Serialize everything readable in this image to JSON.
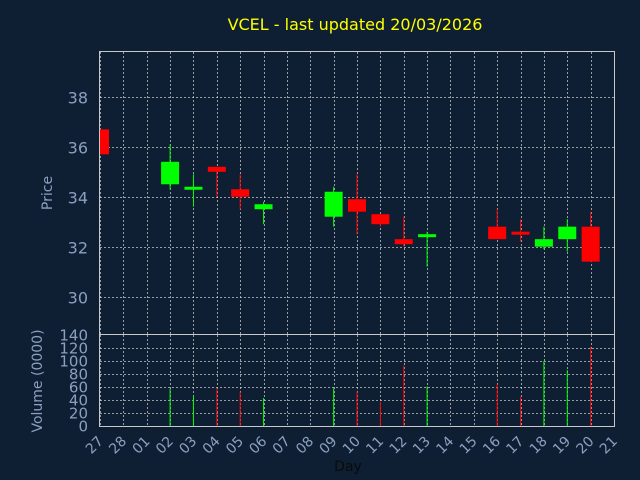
{
  "chart_data": [
    {
      "type": "candlestick",
      "title": "VCEL - last updated 20/03/2026",
      "ylabel": "Price",
      "xlabel": "Day",
      "ylim": [
        28.5,
        39.8
      ],
      "yticks": [
        30,
        32,
        34,
        36,
        38
      ],
      "grid": true,
      "up_color": "#00ff00",
      "down_color": "#ff0000",
      "categories": [
        "27",
        "28",
        "01",
        "02",
        "03",
        "04",
        "05",
        "06",
        "07",
        "08",
        "09",
        "10",
        "11",
        "12",
        "13",
        "14",
        "15",
        "16",
        "17",
        "18",
        "19",
        "20",
        "21"
      ],
      "candles": [
        {
          "x": "27",
          "open": 36.7,
          "high": 36.7,
          "low": 35.7,
          "close": 35.7
        },
        {
          "x": "02",
          "open": 34.5,
          "high": 36.1,
          "low": 34.3,
          "close": 35.4
        },
        {
          "x": "03",
          "open": 34.3,
          "high": 34.9,
          "low": 33.6,
          "close": 34.4
        },
        {
          "x": "04",
          "open": 35.2,
          "high": 35.2,
          "low": 34.0,
          "close": 35.0
        },
        {
          "x": "05",
          "open": 34.3,
          "high": 34.9,
          "low": 33.5,
          "close": 34.0
        },
        {
          "x": "06",
          "open": 33.5,
          "high": 33.8,
          "low": 32.9,
          "close": 33.7
        },
        {
          "x": "09",
          "open": 33.2,
          "high": 34.4,
          "low": 32.8,
          "close": 34.2
        },
        {
          "x": "10",
          "open": 33.9,
          "high": 34.9,
          "low": 32.5,
          "close": 33.4
        },
        {
          "x": "11",
          "open": 33.3,
          "high": 33.3,
          "low": 32.8,
          "close": 32.9
        },
        {
          "x": "12",
          "open": 32.3,
          "high": 33.2,
          "low": 32.0,
          "close": 32.1
        },
        {
          "x": "13",
          "open": 32.5,
          "high": 32.6,
          "low": 31.2,
          "close": 32.5
        },
        {
          "x": "16",
          "open": 32.8,
          "high": 33.5,
          "low": 32.3,
          "close": 32.3
        },
        {
          "x": "17",
          "open": 32.6,
          "high": 33.1,
          "low": 32.2,
          "close": 32.5
        },
        {
          "x": "18",
          "open": 32.0,
          "high": 32.8,
          "low": 31.9,
          "close": 32.3
        },
        {
          "x": "19",
          "open": 32.3,
          "high": 33.1,
          "low": 31.8,
          "close": 32.8
        },
        {
          "x": "20",
          "open": 32.8,
          "high": 33.4,
          "low": 31.4,
          "close": 31.4
        }
      ]
    },
    {
      "type": "bar",
      "ylabel": "Volume (0000)",
      "xlabel": "Day",
      "ylim": [
        0,
        140
      ],
      "yticks": [
        0,
        20,
        40,
        60,
        80,
        100,
        120,
        140
      ],
      "grid": true,
      "bars": [
        {
          "x": "02",
          "value": 57,
          "direction": "up"
        },
        {
          "x": "03",
          "value": 46,
          "direction": "up"
        },
        {
          "x": "04",
          "value": 58,
          "direction": "down"
        },
        {
          "x": "05",
          "value": 52,
          "direction": "down"
        },
        {
          "x": "06",
          "value": 43,
          "direction": "up"
        },
        {
          "x": "09",
          "value": 58,
          "direction": "up"
        },
        {
          "x": "10",
          "value": 53,
          "direction": "down"
        },
        {
          "x": "11",
          "value": 37,
          "direction": "down"
        },
        {
          "x": "12",
          "value": 93,
          "direction": "down"
        },
        {
          "x": "13",
          "value": 61,
          "direction": "up"
        },
        {
          "x": "16",
          "value": 64,
          "direction": "down"
        },
        {
          "x": "17",
          "value": 45,
          "direction": "down"
        },
        {
          "x": "18",
          "value": 100,
          "direction": "up"
        },
        {
          "x": "19",
          "value": 86,
          "direction": "up"
        },
        {
          "x": "20",
          "value": 122,
          "direction": "down"
        }
      ]
    }
  ]
}
